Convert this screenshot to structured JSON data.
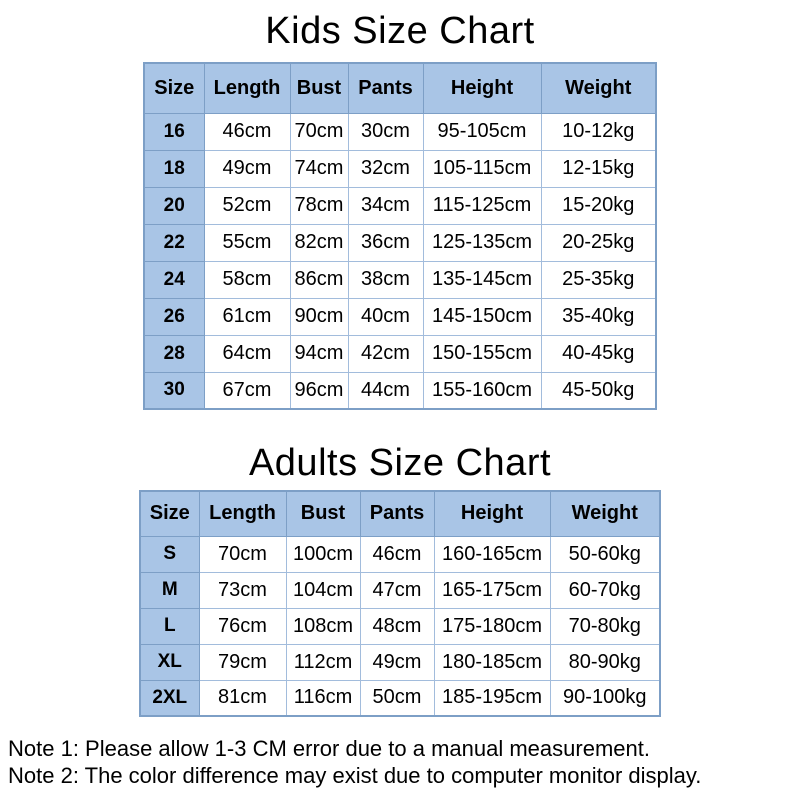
{
  "page_title": "Size Chart",
  "colors": {
    "header_fill": "#a9c5e6",
    "border_dark": "#7d9fc6",
    "grid_light": "#a2bcdc",
    "text": "#000000",
    "background": "#ffffff"
  },
  "chart_data": [
    {
      "type": "table",
      "title": "Kids Size Chart",
      "columns": [
        "Size",
        "Length",
        "Bust",
        "Pants",
        "Height",
        "Weight"
      ],
      "rows": [
        [
          "16",
          "46cm",
          "70cm",
          "30cm",
          "95-105cm",
          "10-12kg"
        ],
        [
          "18",
          "49cm",
          "74cm",
          "32cm",
          "105-115cm",
          "12-15kg"
        ],
        [
          "20",
          "52cm",
          "78cm",
          "34cm",
          "115-125cm",
          "15-20kg"
        ],
        [
          "22",
          "55cm",
          "82cm",
          "36cm",
          "125-135cm",
          "20-25kg"
        ],
        [
          "24",
          "58cm",
          "86cm",
          "38cm",
          "135-145cm",
          "25-35kg"
        ],
        [
          "26",
          "61cm",
          "90cm",
          "40cm",
          "145-150cm",
          "35-40kg"
        ],
        [
          "28",
          "64cm",
          "94cm",
          "42cm",
          "150-155cm",
          "40-45kg"
        ],
        [
          "30",
          "67cm",
          "96cm",
          "44cm",
          "155-160cm",
          "45-50kg"
        ]
      ]
    },
    {
      "type": "table",
      "title": "Adults Size Chart",
      "columns": [
        "Size",
        "Length",
        "Bust",
        "Pants",
        "Height",
        "Weight"
      ],
      "rows": [
        [
          "S",
          "70cm",
          "100cm",
          "46cm",
          "160-165cm",
          "50-60kg"
        ],
        [
          "M",
          "73cm",
          "104cm",
          "47cm",
          "165-175cm",
          "60-70kg"
        ],
        [
          "L",
          "76cm",
          "108cm",
          "48cm",
          "175-180cm",
          "70-80kg"
        ],
        [
          "XL",
          "79cm",
          "112cm",
          "49cm",
          "180-185cm",
          "80-90kg"
        ],
        [
          "2XL",
          "81cm",
          "116cm",
          "50cm",
          "185-195cm",
          "90-100kg"
        ]
      ]
    }
  ],
  "notes": [
    "Note 1: Please allow 1-3 CM error due to a manual measurement.",
    "Note 2: The color difference may exist due to computer monitor display."
  ]
}
